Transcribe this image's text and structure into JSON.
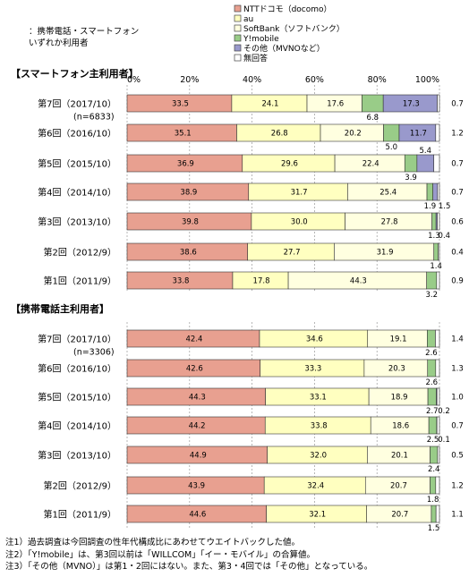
{
  "chart_data": {
    "type": "bar",
    "orientation": "horizontal",
    "stacked": "percent",
    "grid": true,
    "xlim": [
      0,
      100
    ],
    "x_ticks": [
      "0%",
      "20%",
      "40%",
      "60%",
      "80%",
      "100%"
    ],
    "subtitle": "：携帯電話・スマートフォン\nいずれか利用者",
    "legend": {
      "placement": "top-right",
      "entries": [
        "NTTドコモ（docomo）",
        "au",
        "SoftBank（ソフトバンク）",
        "Y!mobile",
        "その他（MVNOなど）",
        "無回答"
      ]
    },
    "series_colors": [
      "#e8a090",
      "#ffffc0",
      "#ffffe0",
      "#99cc88",
      "#9999cc",
      "#ffffff"
    ],
    "groups": [
      {
        "title": "【スマートフォン主利用者】",
        "rows": [
          {
            "label": "第7回（2017/10）",
            "sublabel": "(n=6833)",
            "values": [
              33.5,
              24.1,
              17.6,
              6.8,
              17.3,
              0.7
            ]
          },
          {
            "label": "第6回（2016/10）",
            "sublabel": "",
            "values": [
              35.1,
              26.8,
              20.2,
              5.0,
              11.7,
              1.2
            ]
          },
          {
            "label": "第5回（2015/10）",
            "sublabel": "",
            "values": [
              36.9,
              29.6,
              22.4,
              3.9,
              5.4,
              0.7
            ]
          },
          {
            "label": "第4回（2014/10）",
            "sublabel": "",
            "values": [
              38.9,
              31.7,
              25.4,
              1.9,
              1.5,
              0.7
            ]
          },
          {
            "label": "第3回（2013/10）",
            "sublabel": "",
            "values": [
              39.8,
              30.0,
              27.8,
              1.3,
              0.4,
              0.6
            ]
          },
          {
            "label": "第2回（2012/9）",
            "sublabel": "",
            "values": [
              38.6,
              27.7,
              31.9,
              1.4,
              null,
              0.4
            ]
          },
          {
            "label": "第1回（2011/9）",
            "sublabel": "",
            "values": [
              33.8,
              17.8,
              44.3,
              3.2,
              null,
              0.9
            ]
          }
        ]
      },
      {
        "title": "【携帯電話主利用者】",
        "rows": [
          {
            "label": "第7回（2017/10）",
            "sublabel": "(n=3306)",
            "values": [
              42.4,
              34.6,
              19.1,
              2.6,
              null,
              1.4
            ]
          },
          {
            "label": "第6回（2016/10）",
            "sublabel": "",
            "values": [
              42.6,
              33.3,
              20.3,
              2.6,
              null,
              1.3
            ]
          },
          {
            "label": "第5回（2015/10）",
            "sublabel": "",
            "values": [
              44.3,
              33.1,
              18.9,
              2.7,
              0.2,
              1.0
            ]
          },
          {
            "label": "第4回（2014/10）",
            "sublabel": "",
            "values": [
              44.2,
              33.8,
              18.6,
              2.5,
              0.1,
              0.7
            ]
          },
          {
            "label": "第3回（2013/10）",
            "sublabel": "",
            "values": [
              44.9,
              32.0,
              20.1,
              2.4,
              null,
              0.5
            ]
          },
          {
            "label": "第2回（2012/9）",
            "sublabel": "",
            "values": [
              43.9,
              32.4,
              20.7,
              1.8,
              null,
              1.2
            ]
          },
          {
            "label": "第1回（2011/9）",
            "sublabel": "",
            "values": [
              44.6,
              32.1,
              20.7,
              1.5,
              null,
              1.1
            ]
          }
        ]
      }
    ],
    "notes": [
      "注1）過去調査は今回調査の性年代構成比にあわせてウエイトバックした値。",
      "注2）「Y!mobile」は、第3回以前は「WILLCOM」「イー・モバイル」の合算値。",
      "注3）「その他（MVNO）」は第1・2回にはない。また、第3・4回では「その他」となっている。"
    ]
  }
}
